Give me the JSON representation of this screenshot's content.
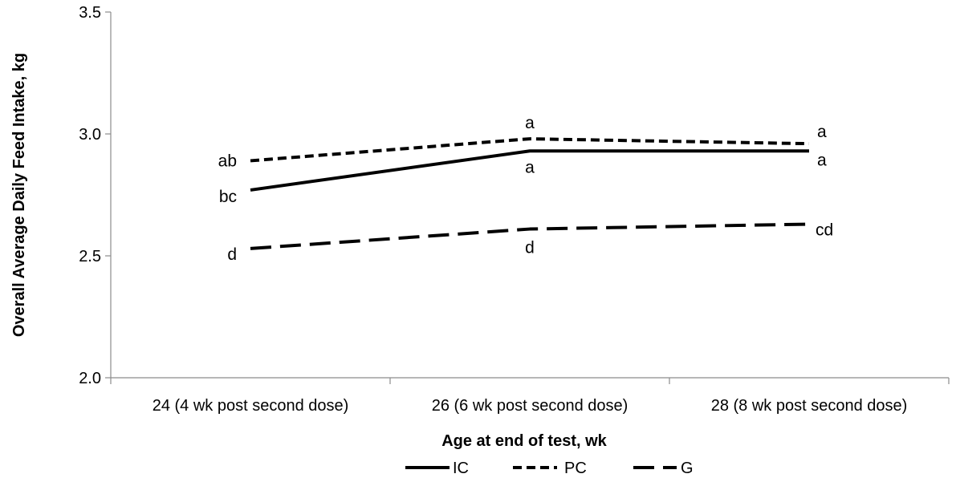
{
  "chart_data": {
    "type": "line",
    "title": "",
    "xlabel": "Age at end of test, wk",
    "ylabel": "Overall Average Daily Feed Intake, kg",
    "ylim": [
      2.0,
      3.5
    ],
    "yticks": [
      "2.0",
      "2.5",
      "3.0",
      "3.5"
    ],
    "categories": [
      "24 (4 wk post second dose)",
      "26 (6 wk post second dose)",
      "28 (8 wk post second dose)"
    ],
    "grid": false,
    "legend_position": "bottom",
    "series": [
      {
        "name": "IC",
        "values": [
          2.77,
          2.93,
          2.93
        ],
        "labels": [
          "bc",
          "a",
          "a"
        ],
        "line_style": "solid",
        "color": "#000000"
      },
      {
        "name": "PC",
        "values": [
          2.89,
          2.98,
          2.96
        ],
        "labels": [
          "ab",
          "a",
          "a"
        ],
        "line_style": "short-dash",
        "color": "#000000"
      },
      {
        "name": "G",
        "values": [
          2.53,
          2.61,
          2.63
        ],
        "labels": [
          "d",
          "d",
          "cd"
        ],
        "line_style": "long-dash",
        "color": "#000000"
      }
    ]
  }
}
